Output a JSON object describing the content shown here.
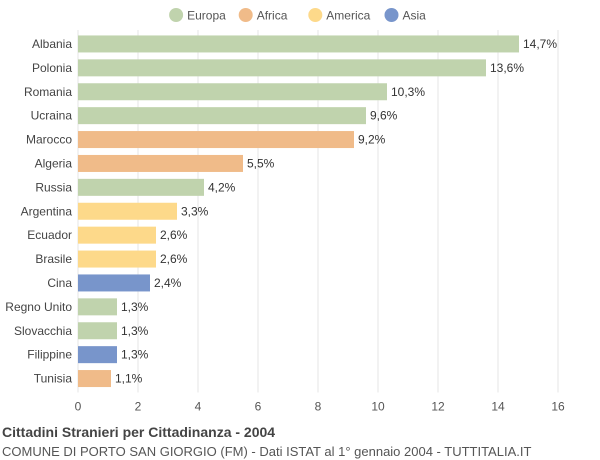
{
  "chart_data": {
    "type": "bar",
    "orientation": "horizontal",
    "title": "Cittadini Stranieri per Cittadinanza - 2004",
    "subtitle": "COMUNE DI PORTO SAN GIORGIO (FM) - Dati ISTAT al 1° gennaio 2004 - TUTTITALIA.IT",
    "legend": [
      {
        "name": "Europa",
        "color": "#c0d3ad"
      },
      {
        "name": "Africa",
        "color": "#f0bb89"
      },
      {
        "name": "America",
        "color": "#fdd98a"
      },
      {
        "name": "Asia",
        "color": "#7895cb"
      }
    ],
    "legend_position": "top",
    "categories": [
      "Albania",
      "Polonia",
      "Romania",
      "Ucraina",
      "Marocco",
      "Algeria",
      "Russia",
      "Argentina",
      "Ecuador",
      "Brasile",
      "Cina",
      "Regno Unito",
      "Slovacchia",
      "Filippine",
      "Tunisia"
    ],
    "values": [
      14.7,
      13.6,
      10.3,
      9.6,
      9.2,
      5.5,
      4.2,
      3.3,
      2.6,
      2.6,
      2.4,
      1.3,
      1.3,
      1.3,
      1.1
    ],
    "labels": [
      "14,7%",
      "13,6%",
      "10,3%",
      "9,6%",
      "9,2%",
      "5,5%",
      "4,2%",
      "3,3%",
      "2,6%",
      "2,6%",
      "2,4%",
      "1,3%",
      "1,3%",
      "1,3%",
      "1,1%"
    ],
    "groups": [
      "Europa",
      "Europa",
      "Europa",
      "Europa",
      "Africa",
      "Africa",
      "Europa",
      "America",
      "America",
      "America",
      "Asia",
      "Europa",
      "Europa",
      "Asia",
      "Africa"
    ],
    "xlim": [
      0,
      16
    ],
    "xticks": [
      0,
      2,
      4,
      6,
      8,
      10,
      12,
      14,
      16
    ],
    "grid": true
  }
}
